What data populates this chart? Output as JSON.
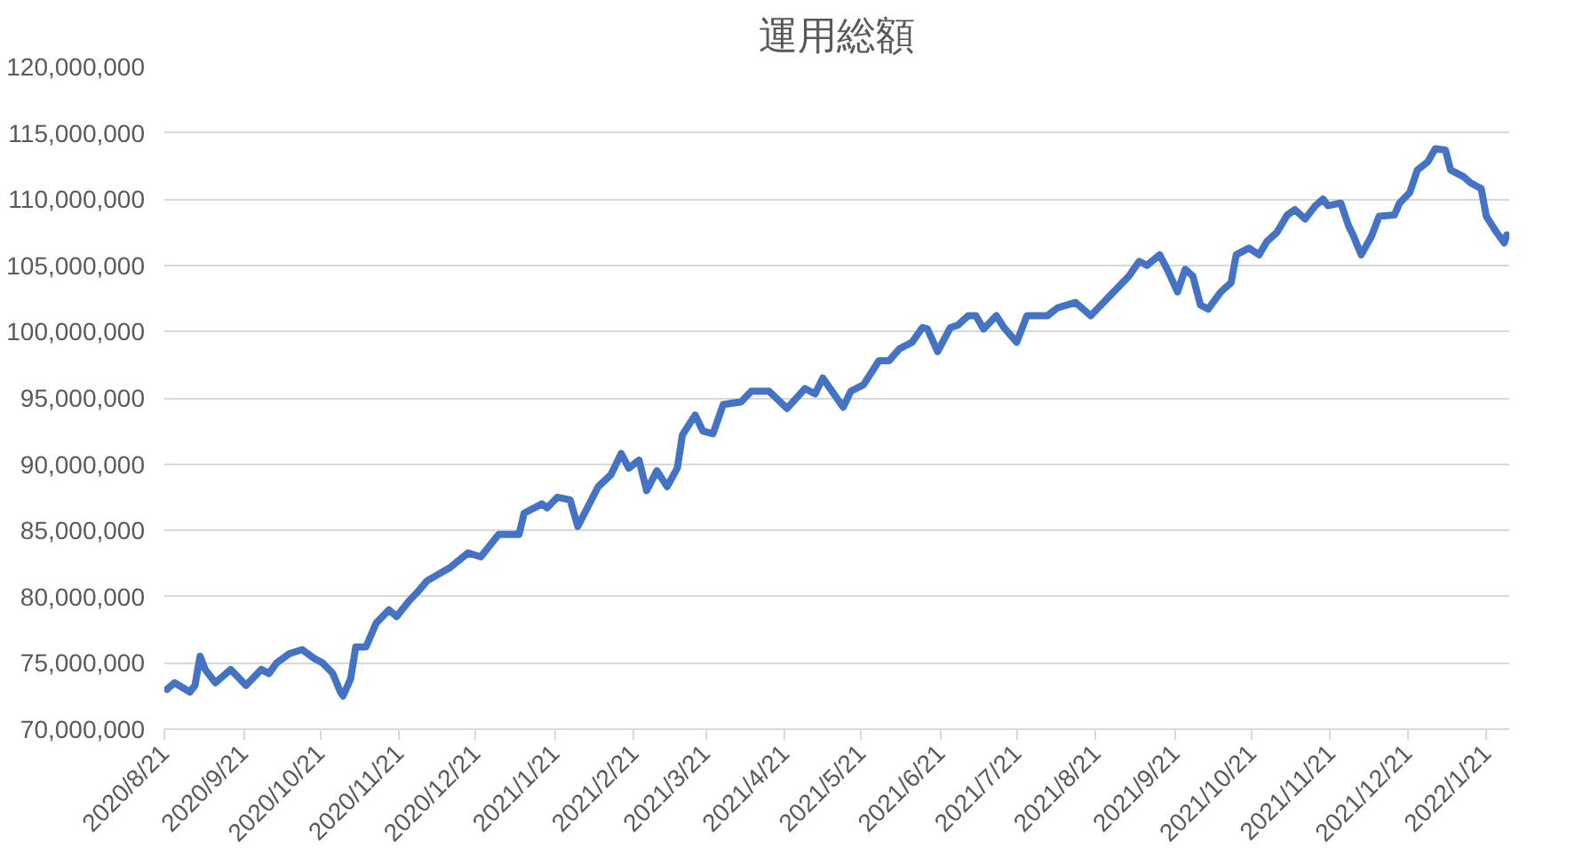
{
  "chart_data": {
    "type": "line",
    "title": "運用総額",
    "x": [
      "2020-08-22",
      "2020-08-25",
      "2020-08-31",
      "2020-09-02",
      "2020-09-04",
      "2020-09-06",
      "2020-09-10",
      "2020-09-16",
      "2020-09-22",
      "2020-09-28",
      "2020-10-01",
      "2020-10-04",
      "2020-10-09",
      "2020-10-14",
      "2020-10-19",
      "2020-10-22",
      "2020-10-26",
      "2020-10-29",
      "2020-10-30",
      "2020-11-02",
      "2020-11-04",
      "2020-11-08",
      "2020-11-12",
      "2020-11-17",
      "2020-11-20",
      "2020-11-25",
      "2020-11-28",
      "2020-12-02",
      "2020-12-11",
      "2020-12-18",
      "2020-12-23",
      "2020-12-30",
      "2021-01-07",
      "2021-01-09",
      "2021-01-16",
      "2021-01-18",
      "2021-01-22",
      "2021-01-27",
      "2021-01-30",
      "2021-02-07",
      "2021-02-12",
      "2021-02-16",
      "2021-02-19",
      "2021-02-23",
      "2021-02-26",
      "2021-03-02",
      "2021-03-06",
      "2021-03-10",
      "2021-03-12",
      "2021-03-17",
      "2021-03-20",
      "2021-03-24",
      "2021-03-28",
      "2021-04-04",
      "2021-04-08",
      "2021-04-15",
      "2021-04-22",
      "2021-04-29",
      "2021-05-03",
      "2021-05-06",
      "2021-05-14",
      "2021-05-17",
      "2021-05-22",
      "2021-05-28",
      "2021-06-01",
      "2021-06-05",
      "2021-06-10",
      "2021-06-14",
      "2021-06-16",
      "2021-06-20",
      "2021-06-25",
      "2021-06-28",
      "2021-07-02",
      "2021-07-05",
      "2021-07-08",
      "2021-07-13",
      "2021-07-16",
      "2021-07-21",
      "2021-07-25",
      "2021-07-29",
      "2021-08-02",
      "2021-08-06",
      "2021-08-13",
      "2021-08-19",
      "2021-08-23",
      "2021-08-27",
      "2021-09-03",
      "2021-09-07",
      "2021-09-10",
      "2021-09-15",
      "2021-09-18",
      "2021-09-22",
      "2021-09-25",
      "2021-09-28",
      "2021-10-01",
      "2021-10-04",
      "2021-10-09",
      "2021-10-13",
      "2021-10-15",
      "2021-10-20",
      "2021-10-24",
      "2021-10-27",
      "2021-10-31",
      "2021-11-04",
      "2021-11-07",
      "2021-11-11",
      "2021-11-15",
      "2021-11-18",
      "2021-11-20",
      "2021-11-25",
      "2021-11-28",
      "2021-11-30",
      "2021-12-03",
      "2021-12-07",
      "2021-12-10",
      "2021-12-16",
      "2021-12-18",
      "2021-12-22",
      "2021-12-25",
      "2021-12-29",
      "2022-01-01",
      "2022-01-05",
      "2022-01-07",
      "2022-01-12",
      "2022-01-15",
      "2022-01-19",
      "2022-01-21",
      "2022-01-25",
      "2022-01-28",
      "2022-01-29"
    ],
    "series": [
      {
        "color": "#4472c4",
        "values": [
          73000000,
          73500000,
          72800000,
          73300000,
          75500000,
          74500000,
          73500000,
          74500000,
          73300000,
          74500000,
          74200000,
          75000000,
          75700000,
          76000000,
          75300000,
          75000000,
          74200000,
          72800000,
          72500000,
          73800000,
          76200000,
          76200000,
          78000000,
          79000000,
          78500000,
          79700000,
          80300000,
          81200000,
          82200000,
          83300000,
          83000000,
          84700000,
          84700000,
          86300000,
          87000000,
          86700000,
          87500000,
          87300000,
          85300000,
          88300000,
          89200000,
          90800000,
          89700000,
          90300000,
          88000000,
          89500000,
          88300000,
          89700000,
          92200000,
          93700000,
          92500000,
          92300000,
          94500000,
          94700000,
          95500000,
          95500000,
          94200000,
          95700000,
          95300000,
          96500000,
          94300000,
          95500000,
          96000000,
          97800000,
          97800000,
          98700000,
          99200000,
          100300000,
          100200000,
          98500000,
          100300000,
          100500000,
          101200000,
          101200000,
          100200000,
          101200000,
          100300000,
          99200000,
          101200000,
          101200000,
          101200000,
          101800000,
          102200000,
          101200000,
          102000000,
          102800000,
          104200000,
          105300000,
          105000000,
          105800000,
          104700000,
          103000000,
          104700000,
          104200000,
          102000000,
          101700000,
          103000000,
          103700000,
          105800000,
          106300000,
          105800000,
          106800000,
          107500000,
          108800000,
          109200000,
          108500000,
          109500000,
          110000000,
          109500000,
          109700000,
          108000000,
          107200000,
          105800000,
          107200000,
          108700000,
          108800000,
          109700000,
          110500000,
          112200000,
          112800000,
          113800000,
          113700000,
          112200000,
          111700000,
          111200000,
          110800000,
          108700000,
          107500000,
          106700000,
          107300000
        ]
      }
    ],
    "xlim": [
      "2020-08-21",
      "2022-01-30"
    ],
    "xticks": [
      {
        "value": "2020-08-21",
        "label": "2020/8/21"
      },
      {
        "value": "2020-09-21",
        "label": "2020/9/21"
      },
      {
        "value": "2020-10-21",
        "label": "2020/10/21"
      },
      {
        "value": "2020-11-21",
        "label": "2020/11/21"
      },
      {
        "value": "2020-12-21",
        "label": "2020/12/21"
      },
      {
        "value": "2021-01-21",
        "label": "2021/1/21"
      },
      {
        "value": "2021-02-21",
        "label": "2021/2/21"
      },
      {
        "value": "2021-03-21",
        "label": "2021/3/21"
      },
      {
        "value": "2021-04-21",
        "label": "2021/4/21"
      },
      {
        "value": "2021-05-21",
        "label": "2021/5/21"
      },
      {
        "value": "2021-06-21",
        "label": "2021/6/21"
      },
      {
        "value": "2021-07-21",
        "label": "2021/7/21"
      },
      {
        "value": "2021-08-21",
        "label": "2021/8/21"
      },
      {
        "value": "2021-09-21",
        "label": "2021/9/21"
      },
      {
        "value": "2021-10-21",
        "label": "2021/10/21"
      },
      {
        "value": "2021-11-21",
        "label": "2021/11/21"
      },
      {
        "value": "2021-12-21",
        "label": "2021/12/21"
      },
      {
        "value": "2022-01-21",
        "label": "2022/1/21"
      }
    ],
    "ylim": [
      70000000,
      120000000
    ],
    "yticks": [
      {
        "value": 70000000,
        "label": "70,000,000"
      },
      {
        "value": 75000000,
        "label": "75,000,000"
      },
      {
        "value": 80000000,
        "label": "80,000,000"
      },
      {
        "value": 85000000,
        "label": "85,000,000"
      },
      {
        "value": 90000000,
        "label": "90,000,000"
      },
      {
        "value": 95000000,
        "label": "95,000,000"
      },
      {
        "value": 100000000,
        "label": "100,000,000"
      },
      {
        "value": 105000000,
        "label": "105,000,000"
      },
      {
        "value": 110000000,
        "label": "110,000,000"
      },
      {
        "value": 115000000,
        "label": "115,000,000"
      },
      {
        "value": 120000000,
        "label": "120,000,000"
      }
    ],
    "grid": "y",
    "marker": "none",
    "line_style": "solid"
  }
}
